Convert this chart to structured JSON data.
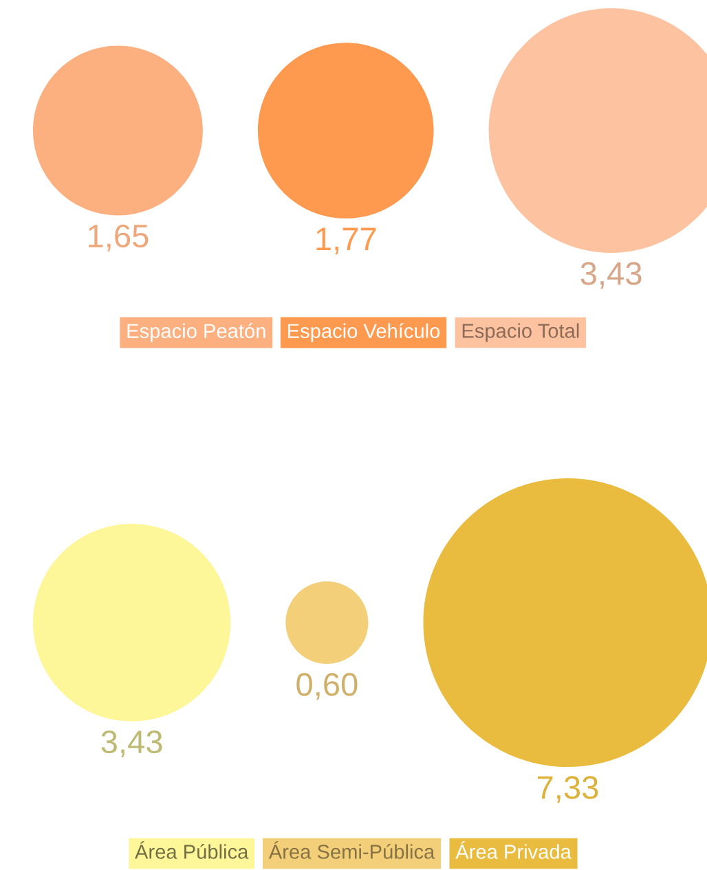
{
  "chart_data": [
    {
      "type": "other",
      "categories": [
        "Espacio Peatón",
        "Espacio Vehículo",
        "Espacio Total"
      ],
      "values": [
        1.65,
        1.77,
        3.43
      ],
      "value_labels": [
        "1,65",
        "1,77",
        "3,43"
      ],
      "colors": [
        "#fcb080",
        "#fd9a50",
        "#fdc3a0"
      ]
    },
    {
      "type": "other",
      "categories": [
        "Área Pública",
        "Área Semi-Pública",
        "Área Privada"
      ],
      "values": [
        3.43,
        0.6,
        7.33
      ],
      "value_labels": [
        "3,43",
        "0,60",
        "7,33"
      ],
      "colors": [
        "#fdf79a",
        "#f3cf7a",
        "#e9bb3e"
      ]
    }
  ]
}
